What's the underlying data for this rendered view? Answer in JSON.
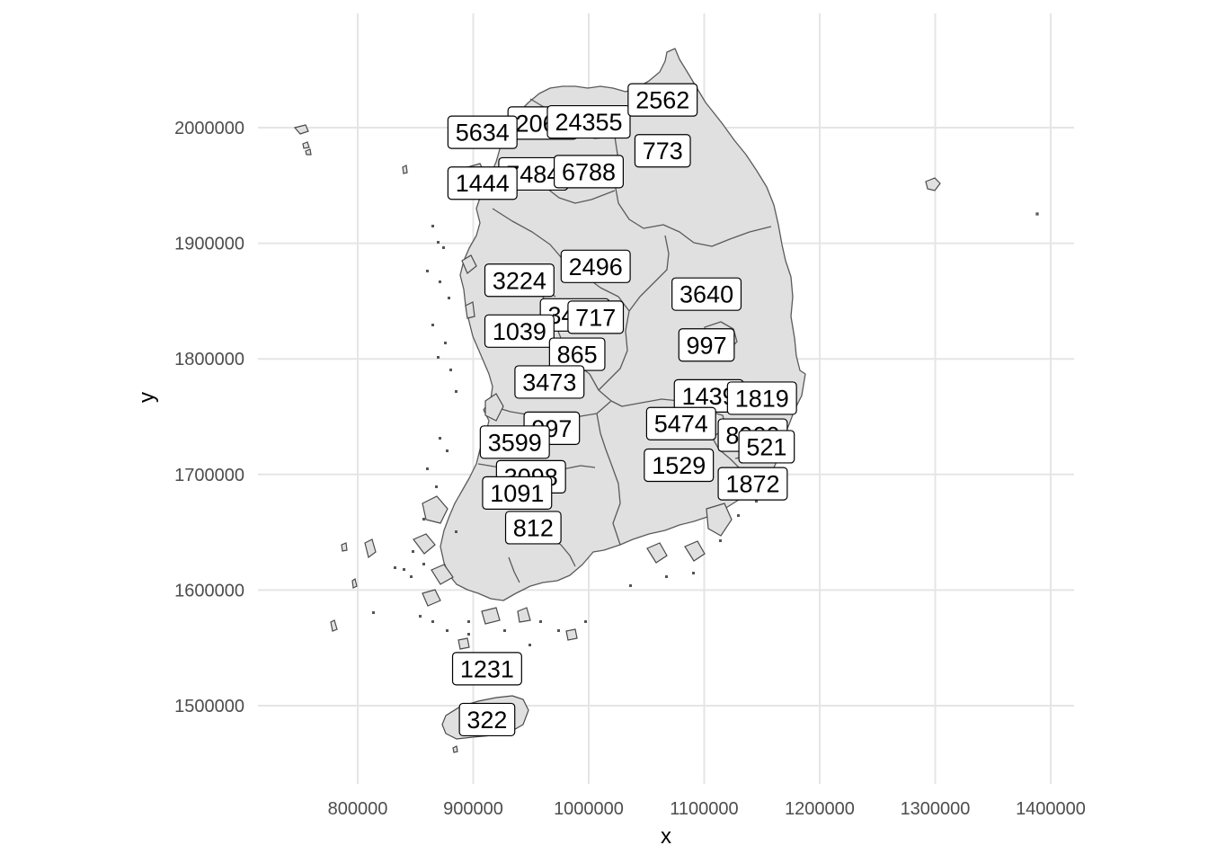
{
  "chart_data": {
    "type": "map",
    "xlabel": "x",
    "ylabel": "y",
    "xlim": [
      745000,
      1425000
    ],
    "ylim": [
      1440000,
      2075000
    ],
    "x_ticks": [
      800000,
      900000,
      1000000,
      1100000,
      1200000,
      1300000,
      1400000
    ],
    "y_ticks": [
      1500000,
      1600000,
      1700000,
      1800000,
      1900000,
      2000000
    ],
    "grid": true,
    "region_fill": "#e0e0e0",
    "border_color": "#5a5a5a",
    "labels": [
      {
        "value": "2068",
        "x": 960000,
        "y": 2004000
      },
      {
        "value": "24355",
        "x": 1000000,
        "y": 2005000
      },
      {
        "value": "5634",
        "x": 908000,
        "y": 1996000
      },
      {
        "value": "2562",
        "x": 1064000,
        "y": 2024000
      },
      {
        "value": "773",
        "x": 1064000,
        "y": 1980000
      },
      {
        "value": "7484",
        "x": 952000,
        "y": 1960000
      },
      {
        "value": "6788",
        "x": 1000000,
        "y": 1962000
      },
      {
        "value": "1444",
        "x": 908000,
        "y": 1952000
      },
      {
        "value": "2496",
        "x": 1006000,
        "y": 1880000
      },
      {
        "value": "3224",
        "x": 940000,
        "y": 1868000
      },
      {
        "value": "3640",
        "x": 1102000,
        "y": 1856000
      },
      {
        "value": "3484",
        "x": 988000,
        "y": 1838000
      },
      {
        "value": "717",
        "x": 1006000,
        "y": 1836000
      },
      {
        "value": "1039",
        "x": 940000,
        "y": 1824000
      },
      {
        "value": "865",
        "x": 990000,
        "y": 1804000
      },
      {
        "value": "997",
        "x": 1102000,
        "y": 1812000
      },
      {
        "value": "3473",
        "x": 966000,
        "y": 1780000
      },
      {
        "value": "1439",
        "x": 1104000,
        "y": 1768000
      },
      {
        "value": "1819",
        "x": 1150000,
        "y": 1766000
      },
      {
        "value": "5474",
        "x": 1080000,
        "y": 1744000
      },
      {
        "value": "997",
        "x": 968000,
        "y": 1740000
      },
      {
        "value": "8900",
        "x": 1142000,
        "y": 1734000
      },
      {
        "value": "521",
        "x": 1154000,
        "y": 1724000
      },
      {
        "value": "3599",
        "x": 936000,
        "y": 1728000
      },
      {
        "value": "1529",
        "x": 1078000,
        "y": 1708000
      },
      {
        "value": "3098",
        "x": 950000,
        "y": 1698000
      },
      {
        "value": "1872",
        "x": 1142000,
        "y": 1692000
      },
      {
        "value": "1091",
        "x": 938000,
        "y": 1684000
      },
      {
        "value": "812",
        "x": 952000,
        "y": 1654000
      },
      {
        "value": "1231",
        "x": 912000,
        "y": 1532000
      },
      {
        "value": "322",
        "x": 912000,
        "y": 1488000
      }
    ]
  }
}
